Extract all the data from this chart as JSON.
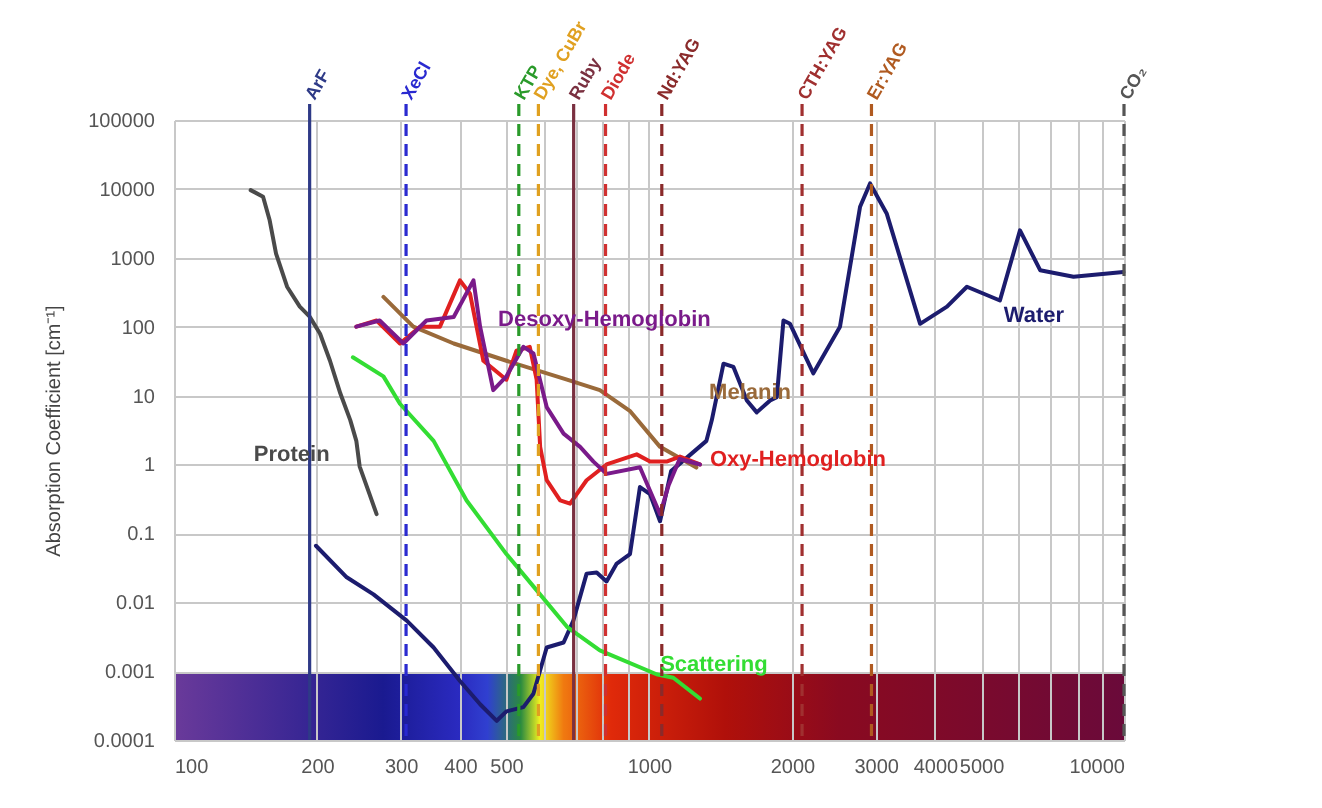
{
  "chart_data": {
    "type": "line",
    "ylabel": "Absorption Coefficient [cm⁻¹]",
    "log": "xy",
    "grid": true,
    "line_style": "solid",
    "marker": "none",
    "xlim": [
      100,
      10000
    ],
    "ylim": [
      0.0001,
      100000
    ],
    "xticks": [
      100,
      200,
      300,
      400,
      500,
      {
        "value": 600,
        "label": null
      },
      {
        "value": 700,
        "label": null
      },
      {
        "value": 800,
        "label": null
      },
      {
        "value": 900,
        "label": null
      },
      1000,
      2000,
      3000,
      4000,
      5000,
      {
        "value": 6000,
        "label": null
      },
      {
        "value": 7000,
        "label": null
      },
      {
        "value": 8000,
        "label": null
      },
      {
        "value": 9000,
        "label": null
      },
      10000
    ],
    "yticks": [
      0.0001,
      0.001,
      0.01,
      0.1,
      1,
      10,
      100,
      1000,
      10000,
      100000
    ],
    "series": [
      {
        "name": "Protein",
        "color": "#4a4a4a",
        "x": [
          145,
          154,
          159,
          164,
          173,
          184,
          193,
          203,
          213,
          224,
          235,
          242,
          246,
          258,
          267
        ],
        "values": [
          9600,
          7700,
          3500,
          1150,
          380,
          195,
          140,
          79,
          32,
          10.7,
          4.4,
          2.2,
          0.93,
          0.37,
          0.19
        ]
      },
      {
        "name": "Water",
        "color": "#1c1c6e",
        "x": [
          199,
          231,
          263,
          309,
          352,
          400,
          441,
          478,
          501,
          544,
          571,
          609,
          661,
          693,
          739,
          776,
          814,
          854,
          912,
          957,
          1005,
          1055,
          1113,
          1321,
          1356,
          1435,
          1506,
          1607,
          1686,
          1799,
          1858,
          1919,
          1981,
          2218,
          2524,
          2782,
          2920,
          3165,
          3722,
          4240,
          4670,
          5480,
          6040,
          6660,
          7830,
          9970
        ],
        "values": [
          0.066,
          0.023,
          0.013,
          0.0054,
          0.0022,
          0.00072,
          0.00033,
          0.00019,
          0.00026,
          0.0003,
          0.00047,
          0.0022,
          0.0026,
          0.0054,
          0.026,
          0.027,
          0.02,
          0.036,
          0.05,
          0.47,
          0.37,
          0.15,
          0.8,
          2.2,
          4.4,
          29,
          26,
          8.5,
          5.7,
          8.5,
          9.5,
          123,
          110,
          21,
          100,
          5500,
          12000,
          4400,
          110,
          195,
          380,
          240,
          2500,
          660,
          530,
          620
        ]
      },
      {
        "name": "Melanin",
        "color": "#9a6a3a",
        "x": [
          276,
          319,
          388,
          501,
          672,
          788,
          911,
          1055,
          1258
        ],
        "values": [
          270,
          100,
          57,
          32,
          17,
          12,
          6,
          1.8,
          0.9
        ]
      },
      {
        "name": "Oxy-Hemoglobin",
        "color": "#e02020",
        "x": [
          242,
          267,
          299,
          330,
          363,
          400,
          420,
          448,
          501,
          526,
          561,
          580,
          590,
          609,
          650,
          682,
          739,
          814,
          942,
          1005,
          1089,
          1162,
          1280
        ],
        "values": [
          100,
          123,
          57,
          100,
          100,
          470,
          300,
          32,
          17,
          45,
          51,
          17,
          1.8,
          0.59,
          0.3,
          0.27,
          0.59,
          1,
          1.4,
          1.1,
          1.1,
          1.3,
          1
        ]
      },
      {
        "name": "Desoxy-Hemoglobin",
        "color": "#7a1a8a",
        "x": [
          242,
          271,
          304,
          340,
          388,
          427,
          441,
          470,
          501,
          544,
          571,
          609,
          661,
          716,
          764,
          814,
          957,
          1055,
          1100,
          1160,
          1280
        ],
        "values": [
          100,
          123,
          57,
          123,
          138,
          470,
          100,
          12,
          19,
          51,
          41,
          6.8,
          2.8,
          1.8,
          1.1,
          0.73,
          0.91,
          0.19,
          0.5,
          1.2,
          1
        ]
      },
      {
        "name": "Scattering",
        "color": "#33dd33",
        "x": [
          238,
          276,
          299,
          352,
          413,
          501,
          571,
          672,
          788,
          1037,
          1125,
          1280
        ],
        "values": [
          36,
          19,
          7.6,
          2.2,
          0.3,
          0.05,
          0.017,
          0.0044,
          0.002,
          0.0009,
          0.0008,
          0.0004
        ]
      }
    ],
    "ref_lines": [
      {
        "axis": "x",
        "value": 193,
        "label": "ArF",
        "color": "#2e3a87",
        "line_style": "solid"
      },
      {
        "axis": "x",
        "value": 308,
        "label": "XeCl",
        "color": "#2a2ad0",
        "line_style": "dashed"
      },
      {
        "axis": "x",
        "value": 532,
        "label": "KTP",
        "color": "#2a9a2a",
        "line_style": "dashed"
      },
      {
        "axis": "x",
        "value": 585,
        "label": "Dye, CuBr",
        "color": "#e0a020",
        "line_style": "dashed"
      },
      {
        "axis": "x",
        "value": 694,
        "label": "Ruby",
        "color": "#7a3040",
        "line_style": "solid"
      },
      {
        "axis": "x",
        "value": 810,
        "label": "Diode",
        "color": "#d03030",
        "line_style": "dashed"
      },
      {
        "axis": "x",
        "value": 1064,
        "label": "Nd:YAG",
        "color": "#8a2a2a",
        "line_style": "dashed"
      },
      {
        "axis": "x",
        "value": 2100,
        "label": "CTH:YAG",
        "color": "#a03030",
        "line_style": "dashed"
      },
      {
        "axis": "x",
        "value": 2940,
        "label": "Er:YAG",
        "color": "#b05a20",
        "line_style": "dashed"
      },
      {
        "axis": "x",
        "value": 10000,
        "label": "CO₂",
        "color": "#555555",
        "line_style": "dashed"
      }
    ]
  }
}
